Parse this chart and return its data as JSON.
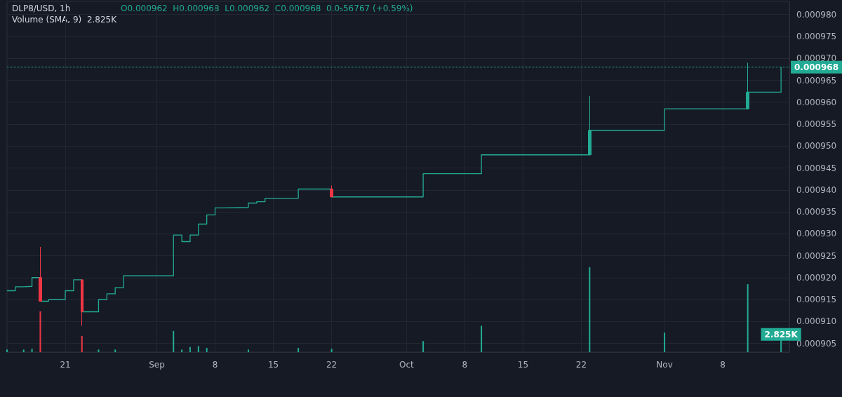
{
  "chart_data": {
    "type": "step",
    "title": "DLP8/USD, 1h",
    "annotations": [
      "O0.000962  H0.000968  L0.000962  C0.000968  0.0₅56767 (+0.59%)",
      "Volume (SMA, 9)  2.825K"
    ],
    "xlim": [
      "--08-14",
      "--11-16"
    ],
    "xticks": [
      {
        "value": "--08-21",
        "label": "21"
      },
      {
        "value": "--09-01",
        "label": "Sep"
      },
      {
        "value": "--09-08",
        "label": "8"
      },
      {
        "value": "--09-15",
        "label": "15"
      },
      {
        "value": "--09-22",
        "label": "22"
      },
      {
        "value": "--10-01",
        "label": "Oct"
      },
      {
        "value": "--10-08",
        "label": "8"
      },
      {
        "value": "--10-15",
        "label": "15"
      },
      {
        "value": "--10-22",
        "label": "22"
      },
      {
        "value": "--11-01",
        "label": "Nov"
      },
      {
        "value": "--11-08",
        "label": "8"
      }
    ],
    "ylim": [
      0.000903,
      0.000983
    ],
    "yticks": [
      {
        "value": 0.000905,
        "label": "0.000905"
      },
      {
        "value": 0.00091,
        "label": "0.000910"
      },
      {
        "value": 0.000915,
        "label": "0.000915"
      },
      {
        "value": 0.00092,
        "label": "0.000920"
      },
      {
        "value": 0.000925,
        "label": "0.000925"
      },
      {
        "value": 0.00093,
        "label": "0.000930"
      },
      {
        "value": 0.000935,
        "label": "0.000935"
      },
      {
        "value": 0.00094,
        "label": "0.000940"
      },
      {
        "value": 0.000945,
        "label": "0.000945"
      },
      {
        "value": 0.00095,
        "label": "0.000950"
      },
      {
        "value": 0.000955,
        "label": "0.000955"
      },
      {
        "value": 0.00096,
        "label": "0.000960"
      },
      {
        "value": 0.000965,
        "label": "0.000965"
      },
      {
        "value": 0.00097,
        "label": "0.000970"
      },
      {
        "value": 0.000975,
        "label": "0.000975"
      },
      {
        "value": 0.00098,
        "label": "0.000980"
      }
    ],
    "y2lim": [
      0,
      41.3
    ],
    "grid": true,
    "marker": "none",
    "line_style": "solid",
    "ref_lines": [
      {
        "axis": "y",
        "value": 0.000968,
        "label": "0.000968",
        "color": "#22ab94",
        "line_style": "dotted"
      }
    ],
    "series": [
      {
        "type": "bar",
        "axis": "y2",
        "x": [
          "--08-14",
          "--08-16",
          "--08-17",
          "--08-18",
          "--08-23",
          "--08-25",
          "--08-27",
          "--09-03",
          "--09-04",
          "--09-05",
          "--09-06",
          "--09-07",
          "--09-12",
          "--09-18",
          "--09-22",
          "--10-03",
          "--10-10",
          "--10-23",
          "--11-01",
          "--11-11",
          "--11-15"
        ],
        "values": [
          0.3,
          0.3,
          0.4,
          4.8,
          1.9,
          0.3,
          0.3,
          2.5,
          0.3,
          0.6,
          0.7,
          0.5,
          0.3,
          0.5,
          0.4,
          1.3,
          3.1,
          10.0,
          2.3,
          8.0,
          2.825
        ],
        "colors": [
          "#22ab94",
          "#22ab94",
          "#22ab94",
          "#f23645",
          "#f23645",
          "#22ab94",
          "#22ab94",
          "#22ab94",
          "#22ab94",
          "#22ab94",
          "#22ab94",
          "#22ab94",
          "#22ab94",
          "#22ab94",
          "#22ab94",
          "#22ab94",
          "#22ab94",
          "#22ab94",
          "#22ab94",
          "#22ab94",
          "#22ab94"
        ],
        "value_labels": [
          null,
          null,
          null,
          null,
          null,
          null,
          null,
          null,
          null,
          null,
          null,
          null,
          null,
          null,
          null,
          null,
          null,
          null,
          null,
          null,
          "2.825K"
        ]
      },
      {
        "color": "#22ab94",
        "x": [
          "--08-14",
          "--08-15",
          "--08-16",
          "--08-17",
          "--08-18",
          "--08-19",
          "--08-21",
          "--08-22",
          "--08-23",
          "--08-25",
          "--08-26",
          "--08-27",
          "--08-28",
          "--09-03",
          "--09-04",
          "--09-05",
          "--09-06",
          "--09-07",
          "--09-08",
          "--09-09",
          "--09-12",
          "--09-13",
          "--09-14",
          "--09-18",
          "--09-22",
          "--10-03",
          "--10-10",
          "--10-23",
          "--11-01",
          "--11-11",
          "--11-15"
        ],
        "values": [
          0.000917,
          0.0009179,
          0.000918,
          0.00092,
          0.0009146,
          0.000915,
          0.000917,
          0.0009195,
          0.0009122,
          0.000915,
          0.0009163,
          0.0009177,
          0.0009204,
          0.0009297,
          0.0009282,
          0.0009297,
          0.0009322,
          0.0009343,
          0.0009359,
          0.000936,
          0.000937,
          0.0009373,
          0.0009381,
          0.0009402,
          0.0009384,
          0.0009437,
          0.000948,
          0.0009536,
          0.0009585,
          0.0009623,
          0.000968
        ]
      },
      {
        "type": "candlestick",
        "x": [
          "--08-18",
          "--08-23",
          "--09-22",
          "--10-23",
          "--11-11"
        ],
        "ohlc": [
          [
            0.00092,
            0.000927,
            0.0009146,
            0.0009146
          ],
          [
            0.0009195,
            0.0009195,
            0.000909,
            0.0009122
          ],
          [
            0.0009402,
            0.000941,
            0.0009384,
            0.0009384
          ],
          [
            0.000948,
            0.0009614,
            0.000948,
            0.0009536
          ],
          [
            0.0009585,
            0.000969,
            0.0009585,
            0.0009623
          ]
        ],
        "colors": [
          "#f23645",
          "#f23645",
          "#f23645",
          "#22ab94",
          "#22ab94"
        ]
      }
    ]
  }
}
